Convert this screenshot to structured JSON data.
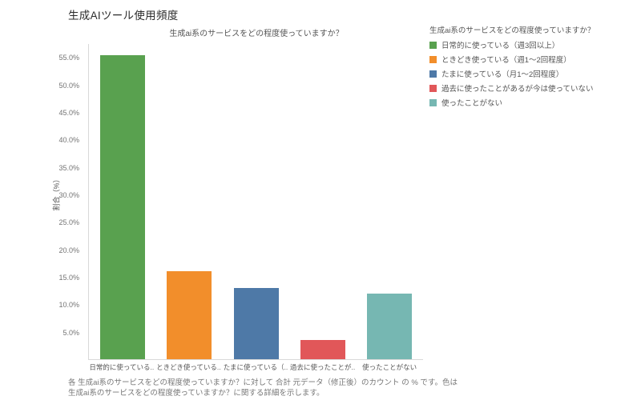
{
  "page_title": "生成AIツール使用頻度",
  "chart_data": {
    "type": "bar",
    "title": "生成ai系のサービスをどの程度使っていますか？",
    "ylabel": "割合（%）",
    "ylim": [
      0,
      57.5
    ],
    "ytick_step": 5,
    "ytick_max": 55,
    "grid": false,
    "categories": [
      "日常的に使っている..",
      "ときどき使っている..",
      "たまに使っている（..",
      "過去に使ったことが..",
      "使ったことがない"
    ],
    "values": [
      55.5,
      16,
      13,
      3.5,
      12
    ],
    "colors": [
      "#59a14f",
      "#f28e2b",
      "#4e79a7",
      "#e15759",
      "#76b7b2"
    ],
    "legend": {
      "position": "top-right",
      "title": "生成ai系のサービスをどの程度使っていますか？",
      "entries": [
        {
          "label": "日常的に使っている（週3回以上）",
          "color": "#59a14f"
        },
        {
          "label": "ときどき使っている（週1～2回程度）",
          "color": "#f28e2b"
        },
        {
          "label": "たまに使っている（月1～2回程度）",
          "color": "#4e79a7"
        },
        {
          "label": "過去に使ったことがあるが今は使っていない",
          "color": "#e15759"
        },
        {
          "label": "使ったことがない",
          "color": "#76b7b2"
        }
      ]
    }
  },
  "footer": {
    "line1": "各 生成ai系のサービスをどの程度使っていますか？に対して 合計 元データ（修正後）のカウント の % です。色は",
    "line2": "生成ai系のサービスをどの程度使っていますか？に関する詳細を示します。"
  }
}
